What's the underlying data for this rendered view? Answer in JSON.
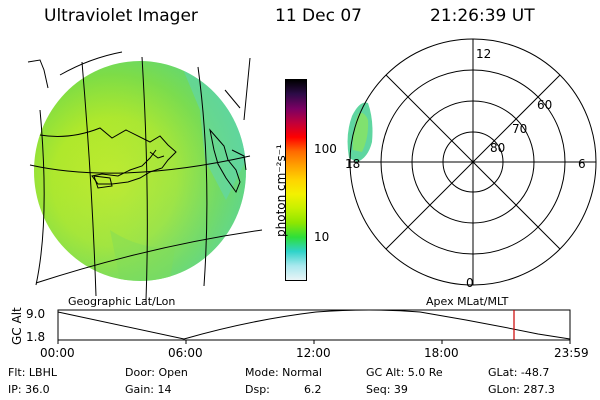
{
  "header": {
    "instrument": "Ultraviolet Imager",
    "date": "11 Dec 07",
    "time": "21:26:39 UT"
  },
  "colorbar": {
    "unit_label": "photon cm⁻²s⁻¹",
    "ticks": [
      "100",
      "10"
    ],
    "colors": [
      "#000000",
      "#2d0b48",
      "#7a0063",
      "#c0003b",
      "#ff0000",
      "#ff6a00",
      "#ffa200",
      "#ffd400",
      "#f3f100",
      "#c6f000",
      "#8ee600",
      "#2edf3a",
      "#2fd3c9",
      "#a9e8ee",
      "#e8f4f6"
    ]
  },
  "polar_grid": {
    "lat_labels": [
      "60",
      "70",
      "80"
    ],
    "mlt_labels": [
      "12",
      "18",
      "6",
      "0"
    ]
  },
  "map_labels": {
    "left": "Geographic Lat/Lon",
    "right": "Apex MLat/MLT"
  },
  "altitude_plot": {
    "ylabel": "GC Alt",
    "yticks": [
      "9.0",
      "1.8"
    ],
    "xticks": [
      "00:00",
      "06:00",
      "12:00",
      "18:00",
      "23:59"
    ]
  },
  "params": {
    "filter": "Flt: LBHL",
    "ip": "IP: 36.0",
    "door": "Door: Open",
    "gain": "Gain: 14",
    "mode": "Mode: Normal",
    "dsp_label": "Dsp:",
    "dsp_value": "6.2",
    "gc_alt": "GC Alt: 5.0 Re",
    "seq": "Seq: 39",
    "glat": "GLat: -48.7",
    "glon": "GLon: 287.3"
  }
}
